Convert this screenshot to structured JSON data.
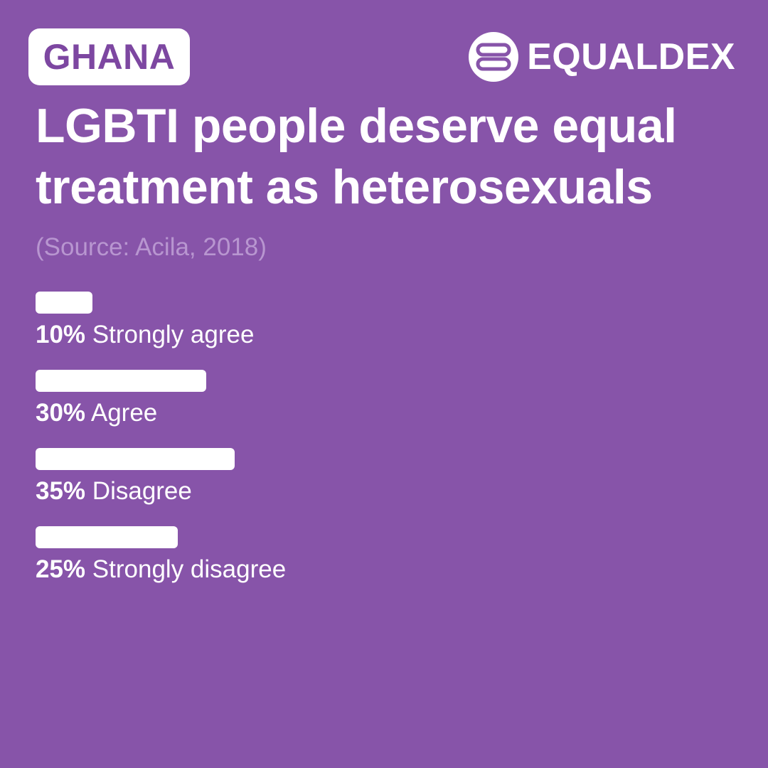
{
  "country": "GHANA",
  "brand": {
    "name": "EQUALDEX",
    "logo_icon": "equaldex-logo-icon"
  },
  "title_lines": [
    "LGBTI people deserve equal",
    "treatment as heterosexuals"
  ],
  "source": "(Source: Acila, 2018)",
  "colors": {
    "background": "#8754a9",
    "bar": "#ffffff",
    "badge_text": "#7d47a1",
    "source_text": "#b896d0"
  },
  "chart_data": {
    "type": "bar",
    "orientation": "horizontal",
    "title": "LGBTI people deserve equal treatment as heterosexuals",
    "categories": [
      "Strongly agree",
      "Agree",
      "Disagree",
      "Strongly disagree"
    ],
    "values": [
      10,
      30,
      35,
      25
    ],
    "value_labels": [
      "10%",
      "30%",
      "35%",
      "25%"
    ],
    "unit": "%",
    "grid": false,
    "legend": "none"
  }
}
